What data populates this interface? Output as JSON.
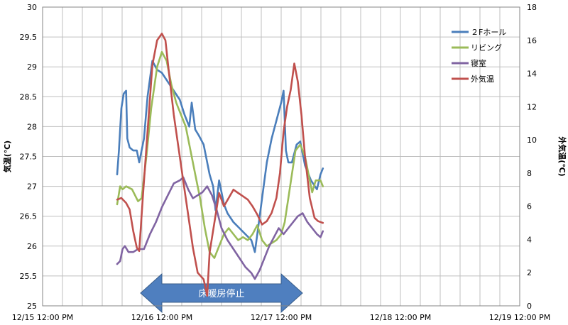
{
  "chart_data": {
    "type": "line",
    "grid": true,
    "legend_position": "top-right",
    "xlim": [
      "12/15 12:00 PM",
      "12/19 12:00 PM"
    ],
    "x_ticks": [
      "12/15 12:00 PM",
      "12/16 12:00 PM",
      "12/17 12:00 PM",
      "12/18 12:00 PM",
      "12/19 12:00 PM"
    ],
    "ylabel": "気温(℃)",
    "ylim": [
      25,
      30
    ],
    "y_ticks": [
      "25",
      "25.5",
      "26",
      "26.5",
      "27",
      "27.5",
      "28",
      "28.5",
      "29",
      "29.5",
      "30"
    ],
    "y2label": "外気温(℃)",
    "y2lim": [
      0,
      18
    ],
    "y2_ticks": [
      "0",
      "2",
      "4",
      "6",
      "8",
      "10",
      "12",
      "14",
      "16",
      "18"
    ],
    "annotation": "床暖房停止",
    "annotation_range": [
      "12/16 12:00 PM",
      "12/17 12:00 PM"
    ],
    "series": [
      {
        "name": "２Fホール",
        "axis": "left",
        "color": "#4a7ebb",
        "points": [
          [
            0.625,
            27.2
          ],
          [
            0.64,
            27.6
          ],
          [
            0.66,
            28.3
          ],
          [
            0.68,
            28.55
          ],
          [
            0.7,
            28.6
          ],
          [
            0.71,
            27.8
          ],
          [
            0.73,
            27.65
          ],
          [
            0.76,
            27.6
          ],
          [
            0.79,
            27.6
          ],
          [
            0.81,
            27.4
          ],
          [
            0.85,
            27.8
          ],
          [
            0.88,
            28.5
          ],
          [
            0.92,
            29.1
          ],
          [
            0.96,
            28.95
          ],
          [
            1.0,
            28.9
          ],
          [
            1.05,
            28.75
          ],
          [
            1.1,
            28.6
          ],
          [
            1.15,
            28.45
          ],
          [
            1.19,
            28.2
          ],
          [
            1.23,
            28.0
          ],
          [
            1.25,
            28.4
          ],
          [
            1.28,
            27.95
          ],
          [
            1.31,
            27.85
          ],
          [
            1.35,
            27.7
          ],
          [
            1.4,
            27.2
          ],
          [
            1.43,
            27.0
          ],
          [
            1.45,
            26.6
          ],
          [
            1.48,
            27.1
          ],
          [
            1.5,
            26.9
          ],
          [
            1.52,
            26.7
          ],
          [
            1.55,
            26.55
          ],
          [
            1.6,
            26.4
          ],
          [
            1.65,
            26.3
          ],
          [
            1.7,
            26.2
          ],
          [
            1.75,
            26.1
          ],
          [
            1.78,
            25.9
          ],
          [
            1.8,
            26.2
          ],
          [
            1.84,
            26.8
          ],
          [
            1.88,
            27.4
          ],
          [
            1.92,
            27.8
          ],
          [
            1.96,
            28.1
          ],
          [
            2.0,
            28.4
          ],
          [
            2.02,
            28.6
          ],
          [
            2.04,
            27.6
          ],
          [
            2.06,
            27.4
          ],
          [
            2.09,
            27.4
          ],
          [
            2.13,
            27.7
          ],
          [
            2.16,
            27.75
          ],
          [
            2.2,
            27.35
          ],
          [
            2.25,
            27.1
          ],
          [
            2.3,
            26.95
          ],
          [
            2.33,
            27.2
          ],
          [
            2.35,
            27.3
          ]
        ]
      },
      {
        "name": "リビング",
        "axis": "left",
        "color": "#9bbb59",
        "points": [
          [
            0.625,
            26.7
          ],
          [
            0.65,
            27.0
          ],
          [
            0.67,
            26.95
          ],
          [
            0.7,
            27.0
          ],
          [
            0.75,
            26.95
          ],
          [
            0.8,
            26.75
          ],
          [
            0.83,
            26.8
          ],
          [
            0.87,
            27.5
          ],
          [
            0.91,
            28.3
          ],
          [
            0.96,
            29.0
          ],
          [
            1.0,
            29.25
          ],
          [
            1.04,
            29.1
          ],
          [
            1.08,
            28.7
          ],
          [
            1.12,
            28.4
          ],
          [
            1.16,
            28.2
          ],
          [
            1.2,
            28.0
          ],
          [
            1.24,
            27.6
          ],
          [
            1.28,
            27.2
          ],
          [
            1.32,
            26.8
          ],
          [
            1.36,
            26.3
          ],
          [
            1.4,
            25.9
          ],
          [
            1.44,
            25.8
          ],
          [
            1.48,
            26.0
          ],
          [
            1.52,
            26.2
          ],
          [
            1.56,
            26.3
          ],
          [
            1.6,
            26.2
          ],
          [
            1.64,
            26.1
          ],
          [
            1.68,
            26.15
          ],
          [
            1.72,
            26.1
          ],
          [
            1.76,
            26.2
          ],
          [
            1.8,
            26.35
          ],
          [
            1.84,
            26.1
          ],
          [
            1.88,
            26.0
          ],
          [
            1.92,
            26.05
          ],
          [
            1.96,
            26.1
          ],
          [
            2.0,
            26.2
          ],
          [
            2.03,
            26.4
          ],
          [
            2.06,
            26.8
          ],
          [
            2.09,
            27.2
          ],
          [
            2.12,
            27.6
          ],
          [
            2.16,
            27.7
          ],
          [
            2.2,
            27.5
          ],
          [
            2.23,
            27.2
          ],
          [
            2.26,
            26.9
          ],
          [
            2.29,
            27.1
          ],
          [
            2.33,
            27.1
          ],
          [
            2.35,
            27.0
          ]
        ]
      },
      {
        "name": "寝室",
        "axis": "left",
        "color": "#8064a2",
        "points": [
          [
            0.625,
            25.7
          ],
          [
            0.65,
            25.75
          ],
          [
            0.67,
            25.95
          ],
          [
            0.69,
            26.0
          ],
          [
            0.72,
            25.9
          ],
          [
            0.76,
            25.9
          ],
          [
            0.8,
            25.95
          ],
          [
            0.85,
            25.95
          ],
          [
            0.9,
            26.2
          ],
          [
            0.95,
            26.4
          ],
          [
            1.0,
            26.65
          ],
          [
            1.05,
            26.85
          ],
          [
            1.1,
            27.05
          ],
          [
            1.15,
            27.1
          ],
          [
            1.18,
            27.15
          ],
          [
            1.22,
            26.95
          ],
          [
            1.26,
            26.8
          ],
          [
            1.3,
            26.85
          ],
          [
            1.34,
            26.9
          ],
          [
            1.38,
            27.0
          ],
          [
            1.42,
            26.85
          ],
          [
            1.46,
            26.6
          ],
          [
            1.5,
            26.3
          ],
          [
            1.55,
            26.1
          ],
          [
            1.6,
            25.95
          ],
          [
            1.65,
            25.8
          ],
          [
            1.7,
            25.65
          ],
          [
            1.75,
            25.55
          ],
          [
            1.78,
            25.45
          ],
          [
            1.82,
            25.6
          ],
          [
            1.86,
            25.8
          ],
          [
            1.9,
            26.0
          ],
          [
            1.94,
            26.15
          ],
          [
            1.98,
            26.3
          ],
          [
            2.02,
            26.2
          ],
          [
            2.06,
            26.3
          ],
          [
            2.1,
            26.4
          ],
          [
            2.14,
            26.5
          ],
          [
            2.18,
            26.55
          ],
          [
            2.22,
            26.4
          ],
          [
            2.26,
            26.3
          ],
          [
            2.3,
            26.2
          ],
          [
            2.33,
            26.15
          ],
          [
            2.35,
            26.25
          ]
        ]
      },
      {
        "name": "外気温",
        "axis": "right",
        "color": "#c0504d",
        "points": [
          [
            0.625,
            6.4
          ],
          [
            0.66,
            6.5
          ],
          [
            0.7,
            6.2
          ],
          [
            0.73,
            5.8
          ],
          [
            0.76,
            4.5
          ],
          [
            0.79,
            3.5
          ],
          [
            0.81,
            3.3
          ],
          [
            0.84,
            6.5
          ],
          [
            0.88,
            10.5
          ],
          [
            0.92,
            14.5
          ],
          [
            0.96,
            16.0
          ],
          [
            1.0,
            16.4
          ],
          [
            1.03,
            16.0
          ],
          [
            1.06,
            14.0
          ],
          [
            1.1,
            11.5
          ],
          [
            1.14,
            9.5
          ],
          [
            1.18,
            7.5
          ],
          [
            1.22,
            5.5
          ],
          [
            1.26,
            3.5
          ],
          [
            1.3,
            2.0
          ],
          [
            1.35,
            1.6
          ],
          [
            1.38,
            0.6
          ],
          [
            1.4,
            3.2
          ],
          [
            1.44,
            5.0
          ],
          [
            1.48,
            6.8
          ],
          [
            1.52,
            6.0
          ],
          [
            1.56,
            6.5
          ],
          [
            1.6,
            7.0
          ],
          [
            1.64,
            6.8
          ],
          [
            1.68,
            6.6
          ],
          [
            1.72,
            6.4
          ],
          [
            1.76,
            6.0
          ],
          [
            1.8,
            5.5
          ],
          [
            1.84,
            4.9
          ],
          [
            1.88,
            5.1
          ],
          [
            1.92,
            5.6
          ],
          [
            1.96,
            6.5
          ],
          [
            1.99,
            8.0
          ],
          [
            2.02,
            10.5
          ],
          [
            2.05,
            12.0
          ],
          [
            2.08,
            13.0
          ],
          [
            2.11,
            14.6
          ],
          [
            2.14,
            13.5
          ],
          [
            2.17,
            11.5
          ],
          [
            2.2,
            9.0
          ],
          [
            2.24,
            6.5
          ],
          [
            2.28,
            5.3
          ],
          [
            2.31,
            5.1
          ],
          [
            2.35,
            5.0
          ]
        ]
      }
    ]
  }
}
